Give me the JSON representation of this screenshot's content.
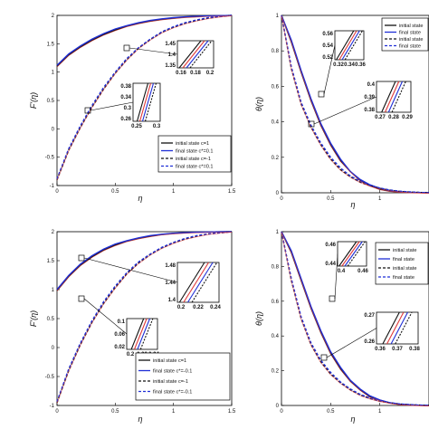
{
  "figure": {
    "colors": {
      "initial": "#111111",
      "final": "#1f2fd6",
      "red": "#e03a3a",
      "frame": "#000000"
    }
  },
  "chart_data": [
    {
      "type": "line",
      "panel": "top-left",
      "xlabel": "η",
      "ylabel": "F'(η)",
      "xlim": [
        0,
        1.5
      ],
      "ylim": [
        -1,
        2
      ],
      "xticks": [
        "0",
        "0.5",
        "1",
        "1.5"
      ],
      "yticks": [
        "-1",
        "-0.5",
        "0",
        "0.5",
        "1",
        "1.5",
        "2"
      ],
      "legend": [
        "initial state c=1",
        "final state c*=0.1",
        "initial state c=-1",
        "final state c*=0.1"
      ],
      "legend_location": "lower-right",
      "series": [
        {
          "name": "initial state c=1",
          "x": [
            0,
            0.1,
            0.2,
            0.3,
            0.4,
            0.5,
            0.6,
            0.7,
            0.8,
            0.9,
            1.0,
            1.1,
            1.2,
            1.3,
            1.4,
            1.5
          ],
          "y": [
            1.1,
            1.3,
            1.44,
            1.56,
            1.66,
            1.74,
            1.81,
            1.86,
            1.9,
            1.93,
            1.95,
            1.97,
            1.98,
            1.99,
            1.995,
            2.0
          ]
        },
        {
          "name": "final state c*=0.1",
          "x": [
            0,
            0.1,
            0.2,
            0.3,
            0.4,
            0.5,
            0.6,
            0.7,
            0.8,
            0.9,
            1.0,
            1.1,
            1.2,
            1.3,
            1.4,
            1.5
          ],
          "y": [
            1.12,
            1.32,
            1.46,
            1.58,
            1.68,
            1.76,
            1.82,
            1.87,
            1.91,
            1.94,
            1.96,
            1.975,
            1.985,
            1.99,
            1.995,
            2.0
          ]
        },
        {
          "name": "initial state c=-1",
          "x": [
            0,
            0.1,
            0.2,
            0.3,
            0.4,
            0.5,
            0.6,
            0.7,
            0.8,
            0.9,
            1.0,
            1.1,
            1.2,
            1.3,
            1.4,
            1.5
          ],
          "y": [
            -0.9,
            -0.38,
            0.02,
            0.38,
            0.7,
            0.98,
            1.22,
            1.42,
            1.57,
            1.7,
            1.79,
            1.86,
            1.91,
            1.95,
            1.98,
            2.0
          ]
        },
        {
          "name": "final state c*=0.1",
          "x": [
            0,
            0.1,
            0.2,
            0.3,
            0.4,
            0.5,
            0.6,
            0.7,
            0.8,
            0.9,
            1.0,
            1.1,
            1.2,
            1.3,
            1.4,
            1.5
          ],
          "y": [
            -0.88,
            -0.35,
            0.05,
            0.41,
            0.73,
            1.0,
            1.24,
            1.43,
            1.58,
            1.71,
            1.8,
            1.87,
            1.92,
            1.96,
            1.98,
            2.0
          ]
        }
      ],
      "insets": [
        {
          "xticks": [
            "0.16",
            "0.18",
            "0.2"
          ],
          "yticks": [
            "1.45",
            "1.4",
            "1.35"
          ]
        },
        {
          "xticks": [
            "0.25",
            "0.3"
          ],
          "yticks": [
            "0.38",
            "0.34",
            "0.3",
            "0.26"
          ]
        }
      ]
    },
    {
      "type": "line",
      "panel": "top-right",
      "xlabel": "η",
      "ylabel": "θ(η)",
      "xlim": [
        0,
        1.5
      ],
      "ylim": [
        0,
        1
      ],
      "xticks": [
        "0",
        "0.5",
        "1"
      ],
      "yticks": [
        "0",
        "0.2",
        "0.4",
        "0.6",
        "0.8",
        "1"
      ],
      "legend": [
        "initial state",
        "final state",
        "initial state",
        "final state"
      ],
      "legend_location": "top-right",
      "series": [
        {
          "name": "initial state",
          "x": [
            0,
            0.1,
            0.2,
            0.3,
            0.4,
            0.5,
            0.6,
            0.7,
            0.8,
            0.9,
            1.0,
            1.1,
            1.2,
            1.3,
            1.4,
            1.5
          ],
          "y": [
            1.0,
            0.85,
            0.68,
            0.52,
            0.38,
            0.27,
            0.18,
            0.12,
            0.07,
            0.04,
            0.02,
            0.01,
            0.005,
            0.002,
            0.001,
            0.0
          ]
        },
        {
          "name": "final state",
          "x": [
            0,
            0.1,
            0.2,
            0.3,
            0.4,
            0.5,
            0.6,
            0.7,
            0.8,
            0.9,
            1.0,
            1.1,
            1.2,
            1.3,
            1.4,
            1.5
          ],
          "y": [
            1.0,
            0.86,
            0.69,
            0.53,
            0.39,
            0.28,
            0.19,
            0.12,
            0.075,
            0.045,
            0.025,
            0.012,
            0.006,
            0.003,
            0.001,
            0.0
          ]
        },
        {
          "name": "initial state",
          "x": [
            0,
            0.1,
            0.2,
            0.3,
            0.4,
            0.5,
            0.6,
            0.7,
            0.8,
            0.9,
            1.0,
            1.1,
            1.2,
            1.3,
            1.4,
            1.5
          ],
          "y": [
            1.0,
            0.7,
            0.5,
            0.37,
            0.27,
            0.19,
            0.13,
            0.09,
            0.06,
            0.04,
            0.025,
            0.015,
            0.008,
            0.004,
            0.002,
            0.0
          ]
        },
        {
          "name": "final state",
          "x": [
            0,
            0.1,
            0.2,
            0.3,
            0.4,
            0.5,
            0.6,
            0.7,
            0.8,
            0.9,
            1.0,
            1.1,
            1.2,
            1.3,
            1.4,
            1.5
          ],
          "y": [
            1.0,
            0.71,
            0.51,
            0.38,
            0.28,
            0.2,
            0.14,
            0.095,
            0.065,
            0.042,
            0.027,
            0.016,
            0.009,
            0.005,
            0.002,
            0.0
          ]
        }
      ],
      "insets": [
        {
          "xticks": [
            "0.32",
            "0.34",
            "0.36"
          ],
          "yticks": [
            "0.56",
            "0.54",
            "0.52"
          ]
        },
        {
          "xticks": [
            "0.27",
            "0.28",
            "0.29"
          ],
          "yticks": [
            "0.4",
            "0.39",
            "0.38"
          ]
        }
      ]
    },
    {
      "type": "line",
      "panel": "bottom-left",
      "xlabel": "η",
      "ylabel": "F'(η)",
      "xlim": [
        0,
        1.5
      ],
      "ylim": [
        -1.1,
        2
      ],
      "xticks": [
        "0",
        "0.5",
        "1",
        "1.5"
      ],
      "yticks": [
        "-1",
        "-0.5",
        "0",
        "0.5",
        "1",
        "1.5",
        "2"
      ],
      "legend": [
        "initial state c=1",
        "final state c*=-0.1",
        "initial state c=-1",
        "final state c*=-0.1"
      ],
      "legend_location": "lower-right",
      "series": [
        {
          "name": "initial state c=1",
          "x": [
            0,
            0.1,
            0.2,
            0.3,
            0.4,
            0.5,
            0.6,
            0.7,
            0.8,
            0.9,
            1.0,
            1.1,
            1.2,
            1.3,
            1.4,
            1.5
          ],
          "y": [
            0.95,
            1.2,
            1.4,
            1.55,
            1.67,
            1.76,
            1.83,
            1.88,
            1.92,
            1.95,
            1.97,
            1.98,
            1.99,
            1.995,
            1.998,
            2.0
          ]
        },
        {
          "name": "final state c*=-0.1",
          "x": [
            0,
            0.1,
            0.2,
            0.3,
            0.4,
            0.5,
            0.6,
            0.7,
            0.8,
            0.9,
            1.0,
            1.1,
            1.2,
            1.3,
            1.4,
            1.5
          ],
          "y": [
            0.97,
            1.22,
            1.42,
            1.57,
            1.69,
            1.78,
            1.84,
            1.89,
            1.93,
            1.955,
            1.972,
            1.983,
            1.99,
            1.995,
            1.998,
            2.0
          ]
        },
        {
          "name": "initial state c=-1",
          "x": [
            0,
            0.1,
            0.2,
            0.3,
            0.4,
            0.5,
            0.6,
            0.7,
            0.8,
            0.9,
            1.0,
            1.1,
            1.2,
            1.3,
            1.4,
            1.5
          ],
          "y": [
            -1.05,
            -0.48,
            -0.02,
            0.38,
            0.72,
            1.0,
            1.25,
            1.44,
            1.59,
            1.71,
            1.8,
            1.87,
            1.92,
            1.96,
            1.98,
            2.0
          ]
        },
        {
          "name": "final state c*=-0.1",
          "x": [
            0,
            0.1,
            0.2,
            0.3,
            0.4,
            0.5,
            0.6,
            0.7,
            0.8,
            0.9,
            1.0,
            1.1,
            1.2,
            1.3,
            1.4,
            1.5
          ],
          "y": [
            -1.03,
            -0.45,
            0.01,
            0.41,
            0.75,
            1.03,
            1.27,
            1.46,
            1.6,
            1.72,
            1.81,
            1.88,
            1.93,
            1.96,
            1.98,
            2.0
          ]
        }
      ],
      "insets": [
        {
          "xticks": [
            "0.2",
            "0.22",
            "0.24"
          ],
          "yticks": [
            "1.48",
            "1.44",
            "1.4"
          ]
        },
        {
          "xticks": [
            "0.2",
            "0.22",
            "0.24"
          ],
          "yticks": [
            "0.1",
            "0.06",
            "0.02"
          ]
        }
      ]
    },
    {
      "type": "line",
      "panel": "bottom-right",
      "xlabel": "η",
      "ylabel": "θ(η)",
      "xlim": [
        0,
        1.5
      ],
      "ylim": [
        0,
        1
      ],
      "xticks": [
        "0",
        "0.5",
        "1"
      ],
      "yticks": [
        "0",
        "0.2",
        "0.4",
        "0.6",
        "0.8",
        "1"
      ],
      "legend": [
        "initial state",
        "final state",
        "initial state",
        "final state"
      ],
      "legend_location": "top-right",
      "series": [
        {
          "name": "initial state",
          "x": [
            0,
            0.1,
            0.2,
            0.3,
            0.4,
            0.5,
            0.6,
            0.7,
            0.8,
            0.9,
            1.0,
            1.1,
            1.2,
            1.3,
            1.4,
            1.5
          ],
          "y": [
            1.0,
            0.88,
            0.72,
            0.56,
            0.42,
            0.3,
            0.21,
            0.14,
            0.09,
            0.05,
            0.03,
            0.015,
            0.007,
            0.003,
            0.001,
            0.0
          ]
        },
        {
          "name": "final state",
          "x": [
            0,
            0.1,
            0.2,
            0.3,
            0.4,
            0.5,
            0.6,
            0.7,
            0.8,
            0.9,
            1.0,
            1.1,
            1.2,
            1.3,
            1.4,
            1.5
          ],
          "y": [
            1.0,
            0.89,
            0.73,
            0.57,
            0.43,
            0.31,
            0.22,
            0.145,
            0.095,
            0.055,
            0.032,
            0.016,
            0.008,
            0.004,
            0.001,
            0.0
          ]
        },
        {
          "name": "initial state",
          "x": [
            0,
            0.1,
            0.2,
            0.3,
            0.4,
            0.5,
            0.6,
            0.7,
            0.8,
            0.9,
            1.0,
            1.1,
            1.2,
            1.3,
            1.4,
            1.5
          ],
          "y": [
            1.0,
            0.72,
            0.5,
            0.35,
            0.25,
            0.18,
            0.13,
            0.09,
            0.06,
            0.04,
            0.025,
            0.015,
            0.008,
            0.004,
            0.002,
            0.0
          ]
        },
        {
          "name": "final state",
          "x": [
            0,
            0.1,
            0.2,
            0.3,
            0.4,
            0.5,
            0.6,
            0.7,
            0.8,
            0.9,
            1.0,
            1.1,
            1.2,
            1.3,
            1.4,
            1.5
          ],
          "y": [
            1.0,
            0.73,
            0.51,
            0.36,
            0.26,
            0.19,
            0.135,
            0.095,
            0.064,
            0.042,
            0.027,
            0.016,
            0.009,
            0.005,
            0.002,
            0.0
          ]
        }
      ],
      "insets": [
        {
          "xticks": [
            "0.4",
            "0.46"
          ],
          "yticks": [
            "0.46",
            "0.44"
          ]
        },
        {
          "xticks": [
            "0.36",
            "0.37",
            "0.38"
          ],
          "yticks": [
            "0.27",
            "0.26"
          ]
        }
      ]
    }
  ]
}
